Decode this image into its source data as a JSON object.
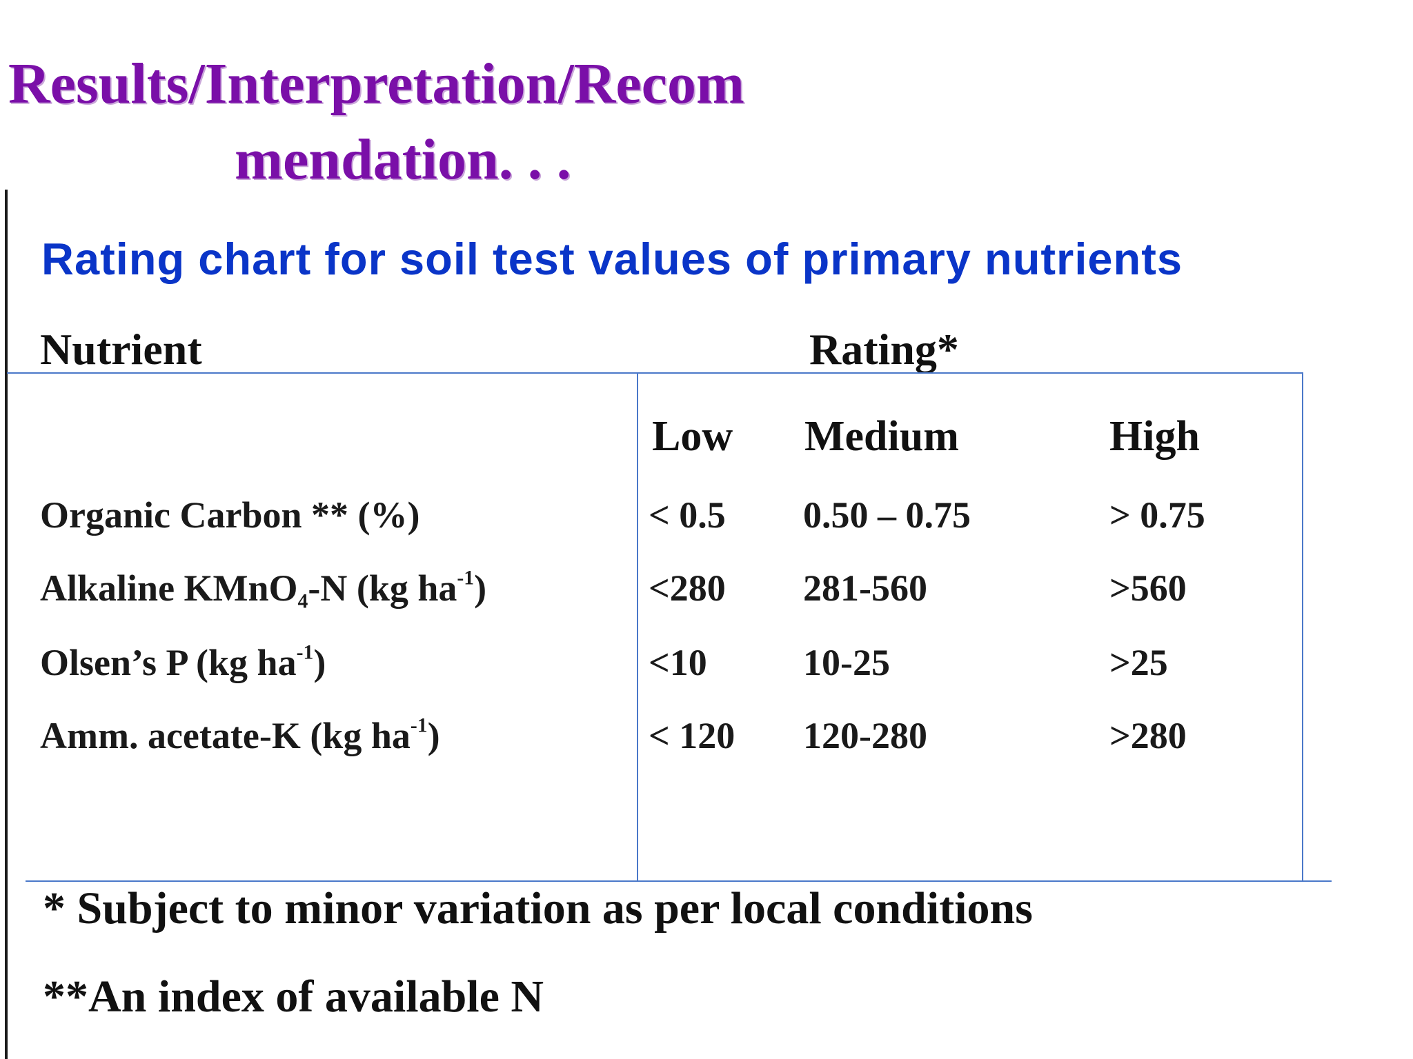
{
  "slide": {
    "title_line1": "Results/Interpretation/Recom",
    "title_line2": "mendation. . .",
    "subtitle": "Rating chart for soil test values of primary nutrients"
  },
  "table": {
    "nutrient_header": "Nutrient",
    "rating_header": "Rating*",
    "columns": [
      "Low",
      "Medium",
      "High"
    ],
    "rows": [
      {
        "label_pre": "Organic Carbon ** (%)",
        "label_sub": "",
        "label_mid": "",
        "label_sup": "",
        "label_post": "",
        "low": "< 0.5",
        "medium": "0.50 – 0.75",
        "high": "> 0.75"
      },
      {
        "label_pre": "Alkaline KMnO",
        "label_sub": "4",
        "label_mid": "-N (kg ha",
        "label_sup": "-1",
        "label_post": ")",
        "low": "<280",
        "medium": "281-560",
        "high": ">560"
      },
      {
        "label_pre": "Olsen’s P (kg ha",
        "label_sub": "",
        "label_mid": "",
        "label_sup": "-1",
        "label_post": ")",
        "low": "<10",
        "medium": "10-25",
        "high": ">25"
      },
      {
        "label_pre": "Amm. acetate-K (kg ha",
        "label_sub": "",
        "label_mid": "",
        "label_sup": "-1",
        "label_post": ")",
        "low": "< 120",
        "medium": "120-280",
        "high": ">280"
      }
    ]
  },
  "footnotes": {
    "note1": "* Subject to minor variation as per local conditions",
    "note2": "**An index of available N"
  },
  "colors": {
    "title": "#7a0fa8",
    "subtitle": "#0a35c8",
    "table_lines": "#4a78c9"
  }
}
